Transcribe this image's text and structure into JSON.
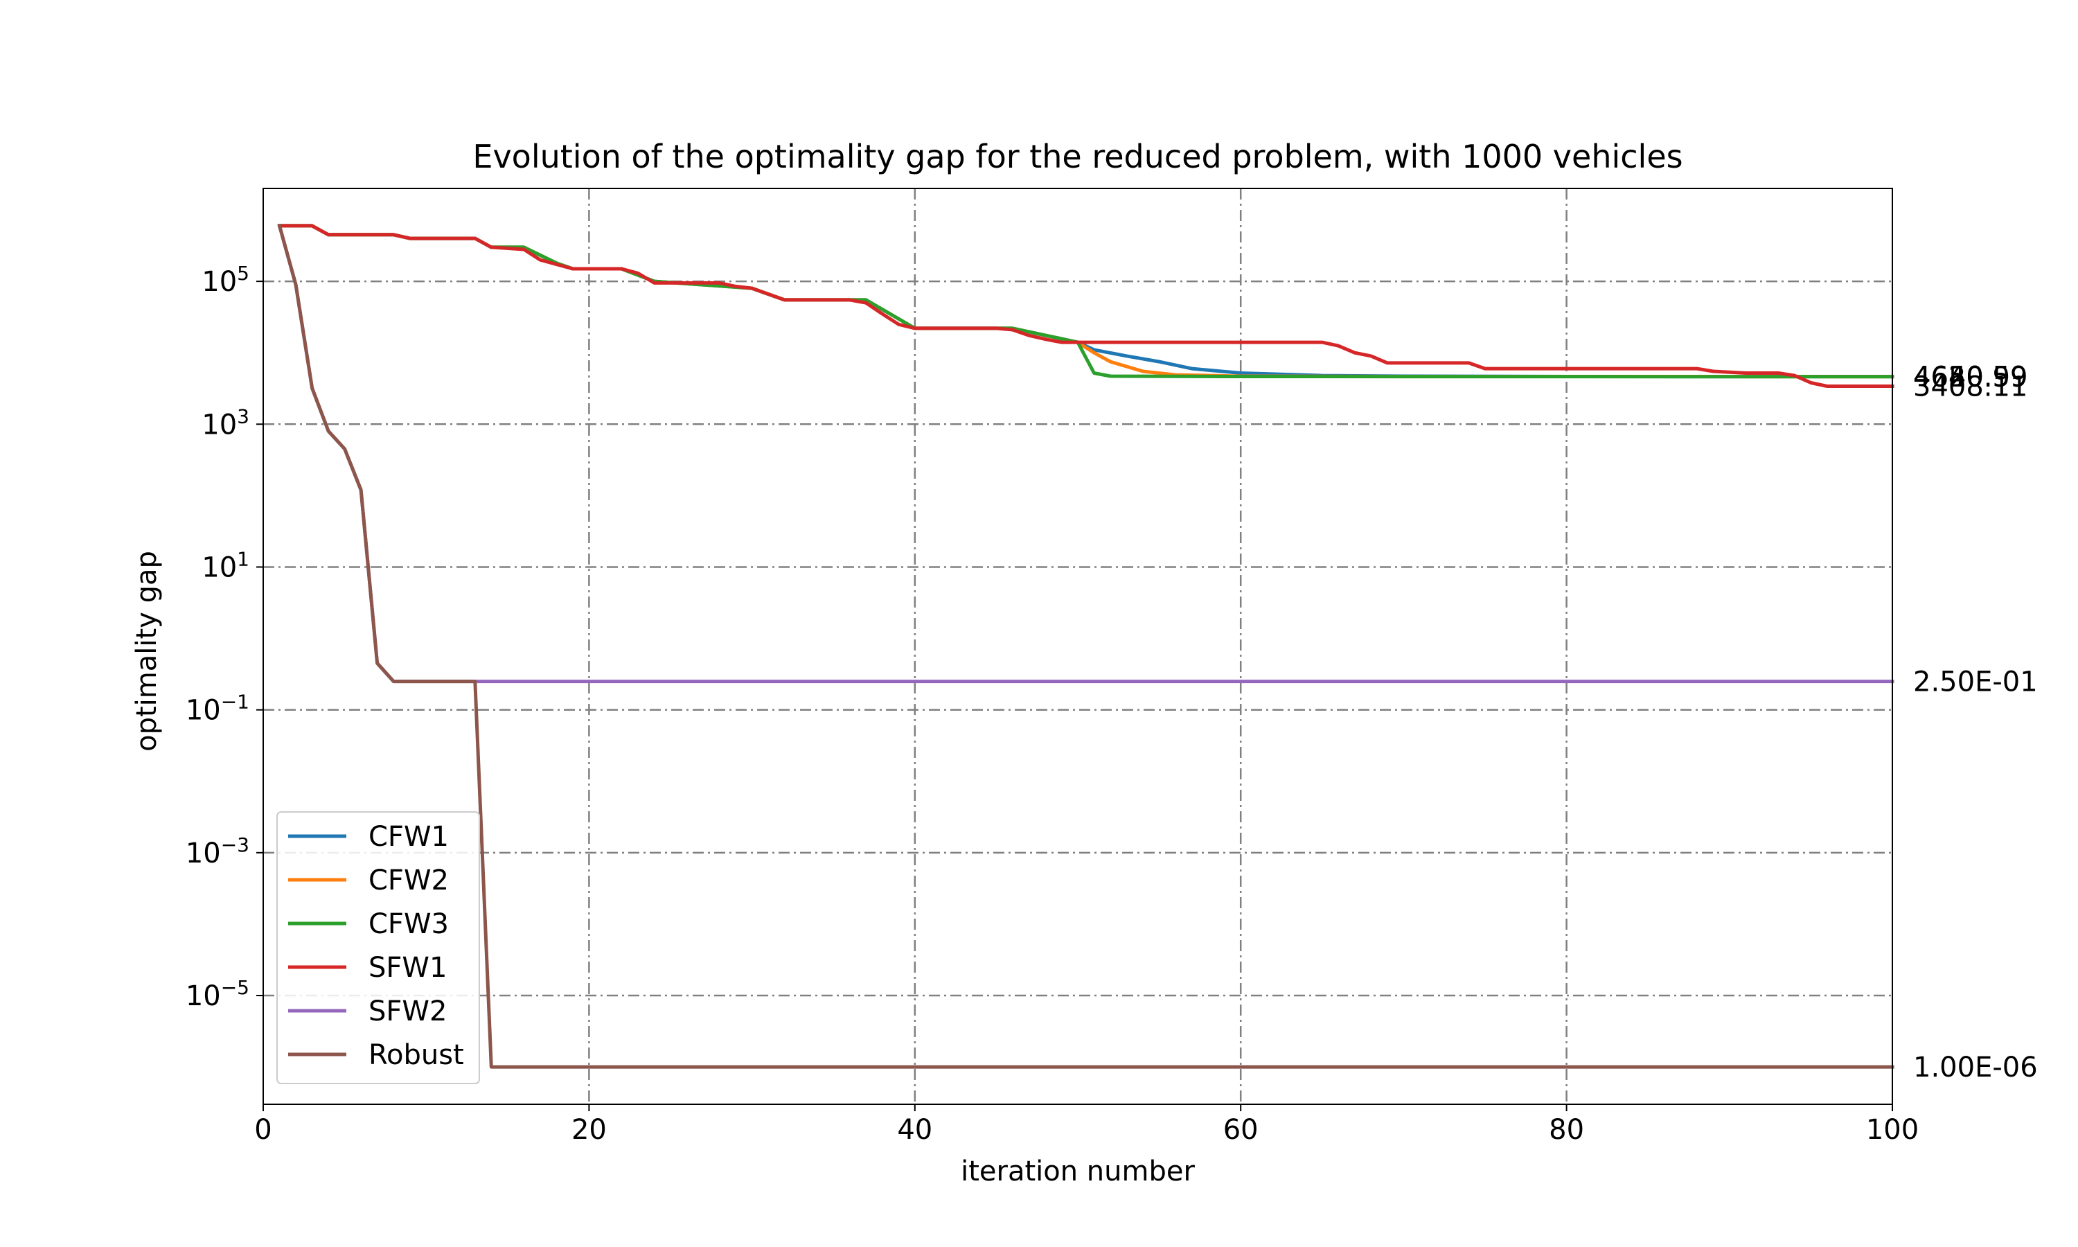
{
  "chart_data": {
    "type": "line",
    "title": "Evolution of the optimality gap for the reduced problem, with 1000 vehicles",
    "xlabel": "iteration number",
    "ylabel": "optimality gap",
    "xlim": [
      0,
      100
    ],
    "ylim": [
      3e-07,
      2000000.0
    ],
    "yscale": "log",
    "grid": true,
    "legend_position": "lower-left",
    "x_ticks": [
      0,
      20,
      40,
      60,
      80,
      100
    ],
    "y_ticks": [
      {
        "base": "10",
        "exp": "5",
        "value": 100000.0
      },
      {
        "base": "10",
        "exp": "3",
        "value": 1000.0
      },
      {
        "base": "10",
        "exp": "1",
        "value": 10.0
      },
      {
        "base": "10",
        "exp": "−1",
        "value": 0.1
      },
      {
        "base": "10",
        "exp": "−3",
        "value": 0.001
      },
      {
        "base": "10",
        "exp": "−5",
        "value": 1e-05
      }
    ],
    "end_labels": [
      {
        "text": "4620.99",
        "value": 4620.99
      },
      {
        "text": "4640.59",
        "value": 4640.59
      },
      {
        "text": "4650.59",
        "value": 4650.59
      },
      {
        "text": "3408.11",
        "value": 3408.11
      },
      {
        "text": "2.50E-01",
        "value": 0.25
      },
      {
        "text": "1.00E-06",
        "value": 1e-06
      }
    ],
    "series": [
      {
        "name": "CFW1",
        "color": "#1f77b4",
        "points": [
          [
            1,
            600000
          ],
          [
            3,
            600000
          ],
          [
            4,
            450000
          ],
          [
            8,
            450000
          ],
          [
            9,
            400000
          ],
          [
            13,
            400000
          ],
          [
            14,
            300000
          ],
          [
            16,
            300000
          ],
          [
            18,
            180000
          ],
          [
            19,
            150000
          ],
          [
            22,
            150000
          ],
          [
            24,
            100000
          ],
          [
            30,
            80000
          ],
          [
            32,
            55000
          ],
          [
            37,
            55000
          ],
          [
            40,
            22000
          ],
          [
            46,
            22000
          ],
          [
            50,
            14000
          ],
          [
            51,
            11000
          ],
          [
            53,
            9000
          ],
          [
            55,
            7500
          ],
          [
            57,
            6000
          ],
          [
            60,
            5200
          ],
          [
            65,
            4800
          ],
          [
            70,
            4700
          ],
          [
            80,
            4650
          ],
          [
            100,
            4650
          ]
        ]
      },
      {
        "name": "CFW2",
        "color": "#ff7f0e",
        "points": [
          [
            1,
            600000
          ],
          [
            3,
            600000
          ],
          [
            4,
            450000
          ],
          [
            8,
            450000
          ],
          [
            9,
            400000
          ],
          [
            13,
            400000
          ],
          [
            14,
            300000
          ],
          [
            16,
            300000
          ],
          [
            18,
            180000
          ],
          [
            19,
            150000
          ],
          [
            22,
            150000
          ],
          [
            24,
            100000
          ],
          [
            30,
            80000
          ],
          [
            32,
            55000
          ],
          [
            37,
            55000
          ],
          [
            40,
            22000
          ],
          [
            46,
            22000
          ],
          [
            50,
            14000
          ],
          [
            51,
            10000
          ],
          [
            52,
            7500
          ],
          [
            54,
            5500
          ],
          [
            56,
            4900
          ],
          [
            60,
            4700
          ],
          [
            70,
            4650
          ],
          [
            100,
            4640
          ]
        ]
      },
      {
        "name": "CFW3",
        "color": "#2ca02c",
        "points": [
          [
            1,
            600000
          ],
          [
            3,
            600000
          ],
          [
            4,
            450000
          ],
          [
            8,
            450000
          ],
          [
            9,
            400000
          ],
          [
            13,
            400000
          ],
          [
            14,
            300000
          ],
          [
            16,
            300000
          ],
          [
            18,
            180000
          ],
          [
            19,
            150000
          ],
          [
            22,
            150000
          ],
          [
            24,
            100000
          ],
          [
            30,
            80000
          ],
          [
            32,
            55000
          ],
          [
            37,
            55000
          ],
          [
            40,
            22000
          ],
          [
            46,
            22000
          ],
          [
            50,
            14000
          ],
          [
            51,
            5200
          ],
          [
            52,
            4700
          ],
          [
            60,
            4650
          ],
          [
            100,
            4620
          ]
        ]
      },
      {
        "name": "SFW1",
        "color": "#d62728",
        "points": [
          [
            1,
            600000
          ],
          [
            3,
            600000
          ],
          [
            4,
            450000
          ],
          [
            8,
            450000
          ],
          [
            9,
            400000
          ],
          [
            13,
            400000
          ],
          [
            14,
            300000
          ],
          [
            16,
            280000
          ],
          [
            17,
            200000
          ],
          [
            19,
            150000
          ],
          [
            22,
            150000
          ],
          [
            23,
            130000
          ],
          [
            24,
            95000
          ],
          [
            28,
            95000
          ],
          [
            29,
            85000
          ],
          [
            30,
            80000
          ],
          [
            32,
            55000
          ],
          [
            36,
            55000
          ],
          [
            37,
            50000
          ],
          [
            38,
            35000
          ],
          [
            39,
            25000
          ],
          [
            40,
            22000
          ],
          [
            45,
            22000
          ],
          [
            46,
            21000
          ],
          [
            47,
            17500
          ],
          [
            48,
            15500
          ],
          [
            49,
            14000
          ],
          [
            65,
            14000
          ],
          [
            66,
            12500
          ],
          [
            67,
            10000
          ],
          [
            68,
            9000
          ],
          [
            69,
            7200
          ],
          [
            74,
            7200
          ],
          [
            75,
            6000
          ],
          [
            88,
            6000
          ],
          [
            89,
            5500
          ],
          [
            91,
            5200
          ],
          [
            93,
            5200
          ],
          [
            94,
            4800
          ],
          [
            95,
            3800
          ],
          [
            96,
            3400
          ],
          [
            100,
            3400
          ]
        ]
      },
      {
        "name": "SFW2",
        "color": "#9467bd",
        "points": [
          [
            1,
            600000
          ],
          [
            2,
            90000
          ],
          [
            3,
            3200
          ],
          [
            4,
            800
          ],
          [
            5,
            450
          ],
          [
            6,
            120
          ],
          [
            7,
            0.45
          ],
          [
            8,
            0.25
          ],
          [
            100,
            0.25
          ]
        ]
      },
      {
        "name": "Robust",
        "color": "#8c564b",
        "points": [
          [
            1,
            600000
          ],
          [
            2,
            90000
          ],
          [
            3,
            3200
          ],
          [
            4,
            800
          ],
          [
            5,
            450
          ],
          [
            6,
            120
          ],
          [
            7,
            0.45
          ],
          [
            8,
            0.25
          ],
          [
            13,
            0.25
          ],
          [
            14,
            1e-06
          ],
          [
            100,
            1e-06
          ]
        ]
      }
    ]
  }
}
